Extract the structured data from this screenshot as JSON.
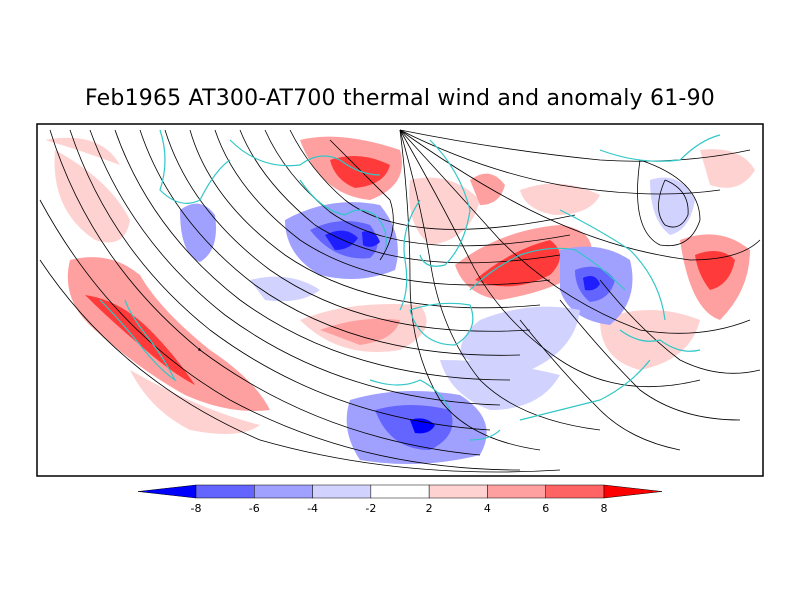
{
  "title": "Feb1965 AT300-AT700 thermal wind and anomaly 61-90",
  "colors": {
    "frame": "#000000",
    "coast": "#33c7c7",
    "streamline": "#000000",
    "neg4": "#0000ff",
    "neg3": "#6464ff",
    "neg2": "#a0a0ff",
    "neg1": "#d2d2ff",
    "neutral": "#ffffff",
    "pos1": "#ffd2d2",
    "pos2": "#ffa0a0",
    "pos3": "#ff6464",
    "pos4": "#ff0000"
  },
  "colorbar": {
    "tick_labels": [
      "-8",
      "-6",
      "-4",
      "-2",
      "2",
      "4",
      "6",
      "8"
    ]
  }
}
